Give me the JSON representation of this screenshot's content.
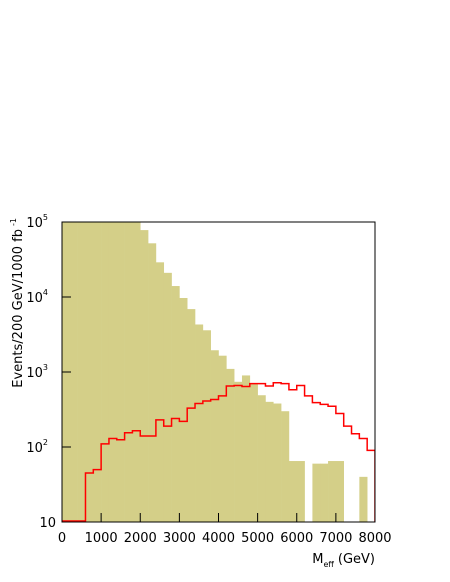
{
  "chart_data": {
    "type": "histogram",
    "x_label": "M",
    "x_label_sub": "eff",
    "x_label_unit": "(GeV)",
    "y_label": "Events/200 GeV/1000 fb",
    "y_label_sup": "-1",
    "bins": [
      0,
      200,
      400,
      600,
      800,
      1000,
      1200,
      1400,
      1600,
      1800,
      2000,
      2200,
      2400,
      2600,
      2800,
      3000,
      3200,
      3400,
      3600,
      3800,
      4000,
      4200,
      4400,
      4600,
      4800,
      5000,
      5200,
      5400,
      5600,
      5800,
      6000,
      6200,
      6400,
      6600,
      6800,
      7000,
      7200,
      7400,
      7600,
      7800,
      8000
    ],
    "series": [
      {
        "style": "filled",
        "color": "#d4cf88",
        "values": [
          100000,
          100000,
          100000,
          100000,
          100000,
          100000,
          100000,
          100000,
          100000,
          100000,
          78000,
          52000,
          29000,
          21000,
          14000,
          9700,
          6900,
          4300,
          3600,
          1950,
          1650,
          1100,
          740,
          900,
          710,
          490,
          400,
          380,
          300,
          65,
          65,
          0,
          60,
          60,
          65,
          65,
          0,
          0,
          40,
          0
        ]
      },
      {
        "style": "step",
        "color": "#ff0000",
        "values": [
          10,
          10,
          10,
          45,
          50,
          110,
          130,
          125,
          155,
          165,
          140,
          140,
          230,
          190,
          240,
          220,
          330,
          380,
          410,
          430,
          480,
          650,
          660,
          640,
          700,
          700,
          650,
          720,
          700,
          580,
          660,
          480,
          390,
          370,
          350,
          280,
          190,
          150,
          130,
          90
        ]
      }
    ],
    "xlim": [
      0,
      8000
    ],
    "xticks": [
      0,
      1000,
      2000,
      3000,
      4000,
      5000,
      6000,
      7000,
      8000
    ],
    "ylim": [
      10,
      100000
    ],
    "log_y": true,
    "yticks": [
      10,
      {
        "value": 100,
        "label": "10",
        "exponent": "2"
      },
      {
        "value": 1000,
        "label": "10",
        "exponent": "3"
      },
      {
        "value": 10000,
        "label": "10",
        "exponent": "4"
      },
      {
        "value": 100000,
        "label": "10",
        "exponent": "5"
      }
    ]
  }
}
